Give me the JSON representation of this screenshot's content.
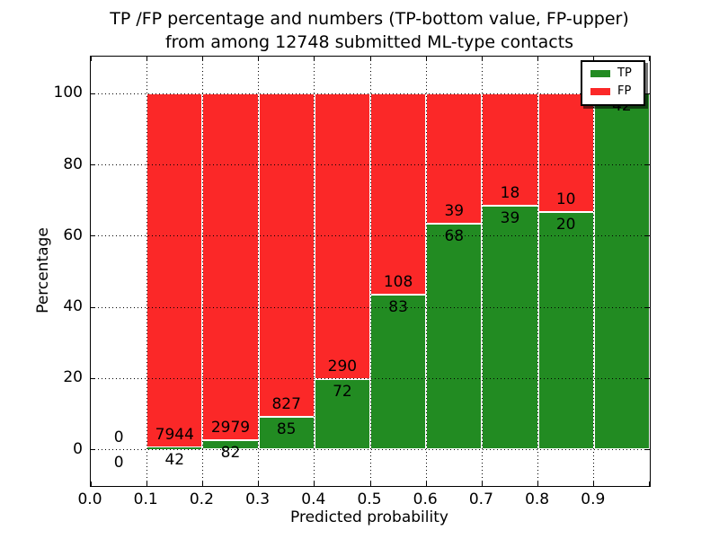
{
  "chart_data": {
    "type": "bar",
    "stacked": true,
    "title_line1": "TP /FP percentage and numbers (TP-bottom value, FP-upper)",
    "title_line2": "from among 12748 submitted ML-type contacts",
    "xlabel": "Predicted probability",
    "ylabel": "Percentage",
    "total_contacts": 12748,
    "x_tick_labels": [
      "0.0",
      "0.1",
      "0.2",
      "0.3",
      "0.4",
      "0.5",
      "0.6",
      "0.7",
      "0.8",
      "0.9"
    ],
    "x_tick_values": [
      0.0,
      0.1,
      0.2,
      0.3,
      0.4,
      0.5,
      0.6,
      0.7,
      0.8,
      0.9
    ],
    "y_tick_labels": [
      "0",
      "20",
      "40",
      "60",
      "80",
      "100"
    ],
    "y_tick_values": [
      0,
      20,
      40,
      60,
      80,
      100
    ],
    "xlim": [
      0.0,
      1.0
    ],
    "ylim": [
      -10.2,
      110.4
    ],
    "grid": "dotted",
    "bar_width": 0.1,
    "bins": [
      {
        "range": [
          0.0,
          0.1
        ],
        "tp": 0,
        "fp": 0
      },
      {
        "range": [
          0.1,
          0.2
        ],
        "tp": 42,
        "fp": 7944
      },
      {
        "range": [
          0.2,
          0.3
        ],
        "tp": 82,
        "fp": 2979
      },
      {
        "range": [
          0.3,
          0.4
        ],
        "tp": 85,
        "fp": 827
      },
      {
        "range": [
          0.4,
          0.5
        ],
        "tp": 72,
        "fp": 290
      },
      {
        "range": [
          0.5,
          0.6
        ],
        "tp": 83,
        "fp": 108
      },
      {
        "range": [
          0.6,
          0.7
        ],
        "tp": 68,
        "fp": 39
      },
      {
        "range": [
          0.7,
          0.8
        ],
        "tp": 39,
        "fp": 18
      },
      {
        "range": [
          0.8,
          0.9
        ],
        "tp": 20,
        "fp": 10
      },
      {
        "range": [
          0.9,
          1.0
        ],
        "tp": 42,
        "fp": 0
      }
    ],
    "legend": {
      "position": "upper-right",
      "entries": [
        {
          "label": "TP",
          "color": "#228b22"
        },
        {
          "label": "FP",
          "color": "#fb2828"
        }
      ]
    },
    "colors": {
      "tp": "#228b22",
      "fp": "#fb2828",
      "grid": "#000000",
      "background": "#ffffff"
    }
  }
}
